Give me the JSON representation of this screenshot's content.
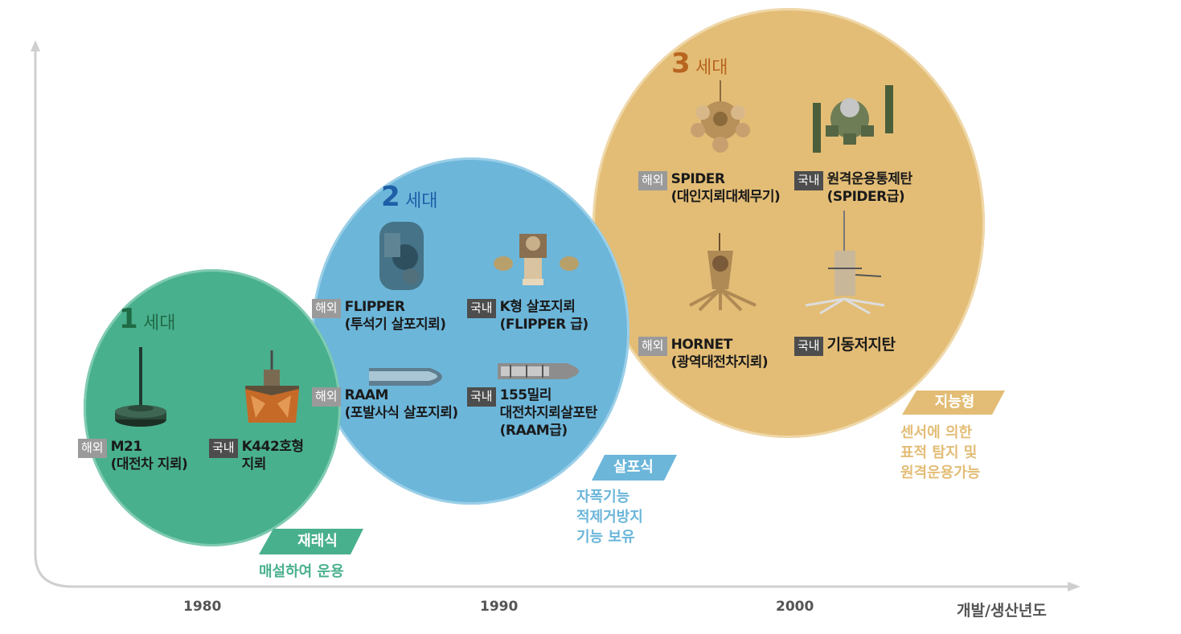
{
  "axis": {
    "x_ticks": [
      "1980",
      "1990",
      "2000"
    ],
    "x_label": "개발/생산년도"
  },
  "generations": [
    {
      "num": "1",
      "word": "세대",
      "color": "#1f6b45",
      "fill": "#49b08e",
      "items": [
        {
          "badge": "해외",
          "name": "M21",
          "sub": "(대전차 지뢰)"
        },
        {
          "badge": "국내",
          "name": "K442호형",
          "sub": "지뢰"
        }
      ],
      "tag": "재래식",
      "desc": [
        "매설하여 운용"
      ]
    },
    {
      "num": "2",
      "word": "세대",
      "color": "#1f5fa8",
      "fill": "#6cb6da",
      "items": [
        {
          "badge": "해외",
          "name": "FLIPPER",
          "sub": "(투석기 살포지뢰)"
        },
        {
          "badge": "국내",
          "name": "K형 살포지뢰",
          "sub": "(FLIPPER 급)"
        },
        {
          "badge": "해외",
          "name": "RAAM",
          "sub": "(포발사식 살포지뢰)"
        },
        {
          "badge": "국내",
          "name": "155밀리",
          "sub": "대전차지뢰살포탄",
          "sub2": "(RAAM급)"
        }
      ],
      "tag": "살포식",
      "desc": [
        "자폭기능",
        "적제거방지",
        "기능 보유"
      ]
    },
    {
      "num": "3",
      "word": "세대",
      "color": "#b8651f",
      "fill": "#e3bd76",
      "items": [
        {
          "badge": "해외",
          "name": "SPIDER",
          "sub": "(대인지뢰대체무기)"
        },
        {
          "badge": "국내",
          "name": "원격운용통제탄",
          "sub": "(SPIDER급)"
        },
        {
          "badge": "해외",
          "name": "HORNET",
          "sub": "(광역대전차지뢰)"
        },
        {
          "badge": "국내",
          "name": "기동저지탄",
          "sub": ""
        }
      ],
      "tag": "지능형",
      "desc": [
        "센서에 의한",
        "표적 탐지 및",
        "원격운용가능"
      ]
    }
  ]
}
